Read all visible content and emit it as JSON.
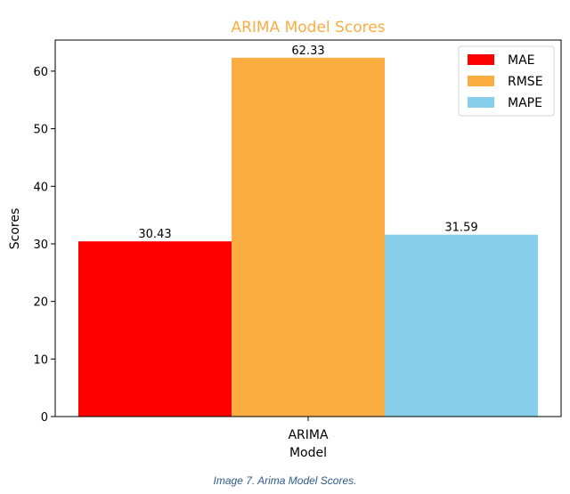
{
  "chart_data": {
    "type": "bar",
    "title": "ARIMA Model Scores",
    "xlabel": "Model",
    "ylabel": "Scores",
    "categories": [
      "ARIMA"
    ],
    "series": [
      {
        "name": "MAE",
        "values": [
          30.43
        ],
        "color": "#ff0000"
      },
      {
        "name": "RMSE",
        "values": [
          62.33
        ],
        "color": "#fbad42"
      },
      {
        "name": "MAPE",
        "values": [
          31.59
        ],
        "color": "#87ceeb"
      }
    ],
    "data_labels": [
      "30.43",
      "62.33",
      "31.59"
    ],
    "ylim": [
      0,
      65.4
    ],
    "yticks": [
      0,
      10,
      20,
      30,
      40,
      50,
      60
    ],
    "title_color": "#fbad42",
    "legend_position": "upper right",
    "grid": false
  },
  "caption": "Image 7. Arima Model Scores."
}
